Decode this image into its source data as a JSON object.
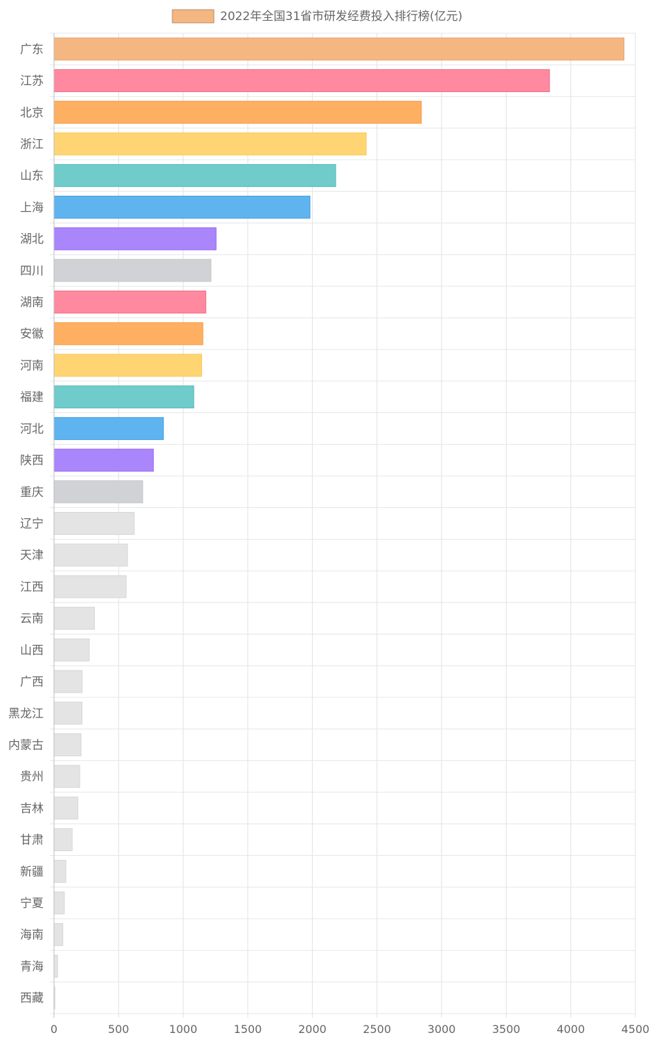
{
  "chart_data": {
    "type": "bar",
    "orientation": "horizontal",
    "legend": "top-center",
    "grid": true,
    "series": [
      {
        "name": "2022年全国31省市研发经费投入排行榜(亿元)",
        "values": [
          4411.9,
          3835.4,
          2843.3,
          2416.8,
          2180.4,
          1981.6,
          1254.7,
          1215.0,
          1175.3,
          1152.5,
          1143.3,
          1082.1,
          847.1,
          769.6,
          686.6,
          621.1,
          568.7,
          558.2,
          313.5,
          273.3,
          217.9,
          216.9,
          209.5,
          199.4,
          184.2,
          140.9,
          91.9,
          79.8,
          68.4,
          28.0,
          7.0
        ]
      }
    ],
    "categories": [
      "广东",
      "江苏",
      "北京",
      "浙江",
      "山东",
      "上海",
      "湖北",
      "四川",
      "湖南",
      "安徽",
      "河南",
      "福建",
      "河北",
      "陕西",
      "重庆",
      "辽宁",
      "天津",
      "江西",
      "云南",
      "山西",
      "广西",
      "黑龙江",
      "内蒙古",
      "贵州",
      "吉林",
      "甘肃",
      "新疆",
      "宁夏",
      "海南",
      "青海",
      "西藏"
    ],
    "colors": [
      "#f4b782",
      "#ff8a9f",
      "#ffaf62",
      "#ffd573",
      "#70cbcb",
      "#5fb3ef",
      "#aa86fd",
      "#d1d2d5",
      "#ff8a9f",
      "#ffaf62",
      "#ffd573",
      "#70cbcb",
      "#5fb3ef",
      "#aa86fd",
      "#d1d2d5",
      "#e4e4e4",
      "#e4e4e4",
      "#e4e4e4",
      "#e4e4e4",
      "#e4e4e4",
      "#e4e4e4",
      "#e4e4e4",
      "#e4e4e4",
      "#e4e4e4",
      "#e4e4e4",
      "#e4e4e4",
      "#e4e4e4",
      "#e4e4e4",
      "#e4e4e4",
      "#e4e4e4",
      "#e4e4e4"
    ],
    "border_colors": [
      "#e8a06a",
      "#f06a87",
      "#f59a45",
      "#f5c85a",
      "#55b9b9",
      "#3f9fe0",
      "#9466f0",
      "#c5c6c9",
      "#f06a87",
      "#f59a45",
      "#f5c85a",
      "#55b9b9",
      "#3f9fe0",
      "#9466f0",
      "#c5c6c9",
      "#d6d6d6",
      "#d6d6d6",
      "#d6d6d6",
      "#d6d6d6",
      "#d6d6d6",
      "#d6d6d6",
      "#d6d6d6",
      "#d6d6d6",
      "#d6d6d6",
      "#d6d6d6",
      "#d6d6d6",
      "#d6d6d6",
      "#d6d6d6",
      "#d6d6d6",
      "#d6d6d6",
      "#d6d6d6"
    ],
    "xlim": [
      0,
      4500
    ],
    "xticks": [
      0,
      500,
      1000,
      1500,
      2000,
      2500,
      3000,
      3500,
      4000,
      4500
    ]
  }
}
